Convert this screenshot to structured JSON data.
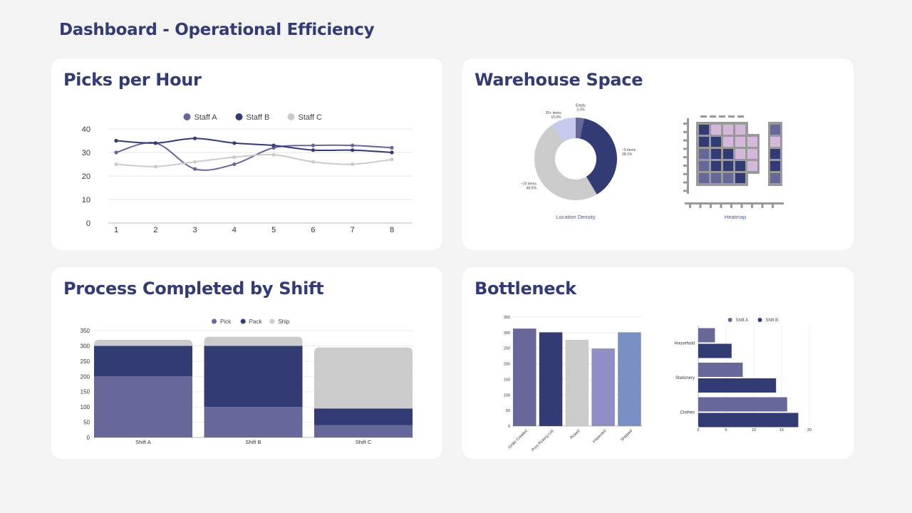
{
  "dashboard": {
    "title": "Dashboard - Operational Efficiency"
  },
  "colors": {
    "primary": "#333b75",
    "mid": "#67679a",
    "light": "#cbcbcb",
    "pale_blue": "#c6cbee",
    "lilac": "#d4b8d9",
    "lavender": "#8f8ec6",
    "steel": "#7890c3",
    "grey_frame": "#999999"
  },
  "cards": {
    "picks": {
      "title": "Picks per Hour"
    },
    "space": {
      "title": "Warehouse Space"
    },
    "shift": {
      "title": "Process Completed by Shift"
    },
    "bottleneck": {
      "title": "Bottleneck"
    }
  },
  "chart_data": [
    {
      "id": "picks",
      "type": "line",
      "title": "Picks per Hour",
      "x": [
        1,
        2,
        3,
        4,
        5,
        6,
        7,
        8
      ],
      "series": [
        {
          "name": "Staff A",
          "color": "#67679a",
          "values": [
            30,
            34,
            23,
            25,
            32,
            33,
            33,
            32
          ]
        },
        {
          "name": "Staff B",
          "color": "#333b75",
          "values": [
            35,
            34,
            36,
            34,
            33,
            31,
            31,
            30
          ]
        },
        {
          "name": "Staff C",
          "color": "#cbcbcb",
          "values": [
            25,
            24,
            26,
            28,
            29,
            26,
            25,
            27
          ]
        }
      ],
      "ylim": [
        0,
        40
      ],
      "yticks": [
        0,
        10,
        20,
        30,
        40
      ],
      "legend": "top",
      "grid": true
    },
    {
      "id": "density",
      "type": "pie",
      "caption": "Location Density",
      "slices": [
        {
          "label": "Empty",
          "pct_label": "3.3%",
          "value": 3.3,
          "color": "#67679a"
        },
        {
          "label": "~5 items",
          "pct_label": "38.1%",
          "value": 38.1,
          "color": "#333b75"
        },
        {
          "label": "~20 items",
          "pct_label": "48.5%",
          "value": 48.5,
          "color": "#cbcbcb"
        },
        {
          "label": "20+ items",
          "pct_label": "10.0%",
          "value": 10.0,
          "color": "#c6cbee"
        }
      ]
    },
    {
      "id": "heatmap",
      "type": "heatmap",
      "caption": "Heatmap",
      "main_grid": [
        [
          2,
          0,
          0,
          0,
          -1
        ],
        [
          2,
          2,
          0,
          0,
          0
        ],
        [
          1,
          2,
          2,
          0,
          0
        ],
        [
          1,
          2,
          2,
          2,
          0
        ],
        [
          1,
          1,
          1,
          2,
          -1
        ]
      ],
      "side_column": [
        1,
        0,
        2,
        2,
        1
      ],
      "level_colors": [
        "#d4b8d9",
        "#67679a",
        "#333b75"
      ]
    },
    {
      "id": "shift",
      "type": "bar",
      "stacked": true,
      "title": "Process Completed by Shift",
      "categories": [
        "Shift A",
        "Shift B",
        "Shift C"
      ],
      "series": [
        {
          "name": "Pick",
          "color": "#67679a",
          "values": [
            200,
            100,
            40
          ]
        },
        {
          "name": "Pack",
          "color": "#333b75",
          "values": [
            100,
            200,
            55
          ]
        },
        {
          "name": "Ship",
          "color": "#cbcbcb",
          "values": [
            20,
            30,
            200
          ]
        }
      ],
      "ylim": [
        0,
        350
      ],
      "yticks": [
        0,
        50,
        100,
        150,
        200,
        250,
        300,
        350
      ],
      "legend": "top",
      "grid": true
    },
    {
      "id": "flow",
      "type": "bar",
      "categories": [
        "Order Created",
        "Print Picking List",
        "Picked",
        "Inspected",
        "Shipped"
      ],
      "values": [
        313,
        301,
        277,
        249,
        301
      ],
      "colors": [
        "#67679a",
        "#333b75",
        "#cbcbcb",
        "#8f8ec6",
        "#7890c3"
      ],
      "ylim": [
        0,
        350
      ],
      "yticks": [
        0,
        50,
        100,
        150,
        200,
        250,
        300,
        350
      ],
      "grid": true
    },
    {
      "id": "category",
      "type": "bar",
      "orientation": "horizontal",
      "categories": [
        "Household",
        "Stationery",
        "Clothes"
      ],
      "series": [
        {
          "name": "Shift A",
          "color": "#67679a",
          "values": [
            3,
            8,
            16
          ]
        },
        {
          "name": "Shift B",
          "color": "#333b75",
          "values": [
            6,
            14,
            18
          ]
        }
      ],
      "xlim": [
        0,
        20
      ],
      "xticks": [
        0,
        5,
        10,
        15,
        20
      ],
      "legend": "top",
      "grid": true
    }
  ]
}
